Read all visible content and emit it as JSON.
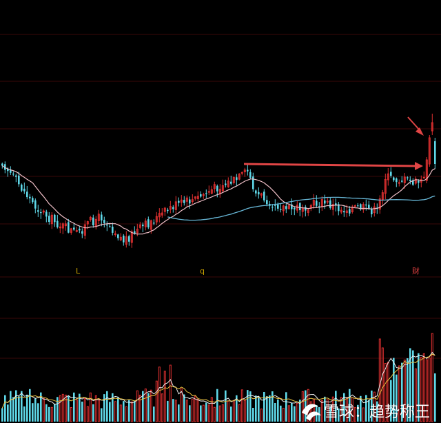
{
  "chart_data": {
    "type": "candlestick",
    "title": "",
    "markers": [
      {
        "index": 27,
        "label": "L",
        "color": "#c8a000"
      },
      {
        "index": 72,
        "label": "q",
        "color": "#c8a000"
      },
      {
        "index": 149,
        "label": "财",
        "color": "#e04040"
      }
    ],
    "colors": {
      "background": "#000000",
      "up": "#e03030",
      "down": "#5fd8e8",
      "ma_short": "#f0c0c8",
      "ma_long": "#68b8d8",
      "arrow": "#e04545",
      "grid": "#3a0808",
      "watermark": "#ffffff"
    },
    "watermark": "雪球：趋势称王"
  }
}
